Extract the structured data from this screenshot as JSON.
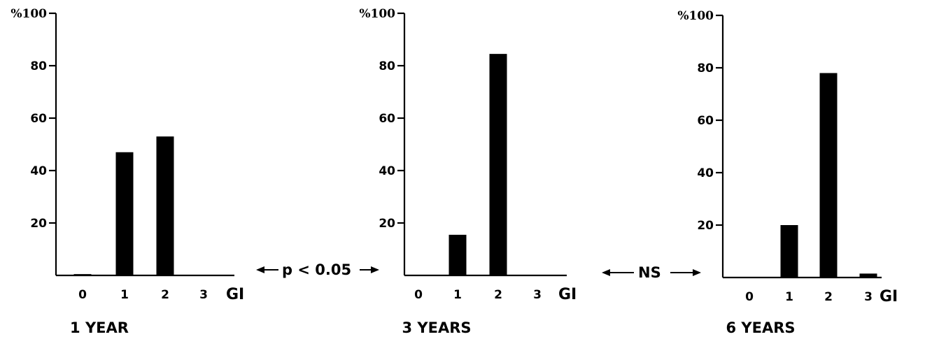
{
  "chart_data": [
    {
      "type": "bar",
      "title": "1 YEAR",
      "xlabel": "GI",
      "ylabel": "%",
      "categories": [
        "0",
        "1",
        "2",
        "3"
      ],
      "values": [
        0.5,
        47,
        53,
        0
      ],
      "ylim": [
        0,
        100
      ],
      "yticks": [
        "20",
        "40",
        "60",
        "80"
      ],
      "ytop_label": "%100",
      "grid": false
    },
    {
      "type": "bar",
      "title": "3 YEARS",
      "xlabel": "GI",
      "ylabel": "%",
      "categories": [
        "0",
        "1",
        "2",
        "3"
      ],
      "values": [
        0,
        15.5,
        84.5,
        0
      ],
      "ylim": [
        0,
        100
      ],
      "yticks": [
        "20",
        "40",
        "60",
        "80"
      ],
      "ytop_label": "%100",
      "grid": false
    },
    {
      "type": "bar",
      "title": "6 YEARS",
      "xlabel": "GI",
      "ylabel": "%",
      "categories": [
        "0",
        "1",
        "2",
        "3"
      ],
      "values": [
        0,
        20,
        78,
        1.5
      ],
      "ylim": [
        0,
        100
      ],
      "yticks": [
        "20",
        "40",
        "60",
        "80"
      ],
      "ytop_label": "%100",
      "grid": false
    }
  ],
  "annotations": {
    "comparison_1_3": "p < 0.05",
    "comparison_3_6": "NS"
  }
}
